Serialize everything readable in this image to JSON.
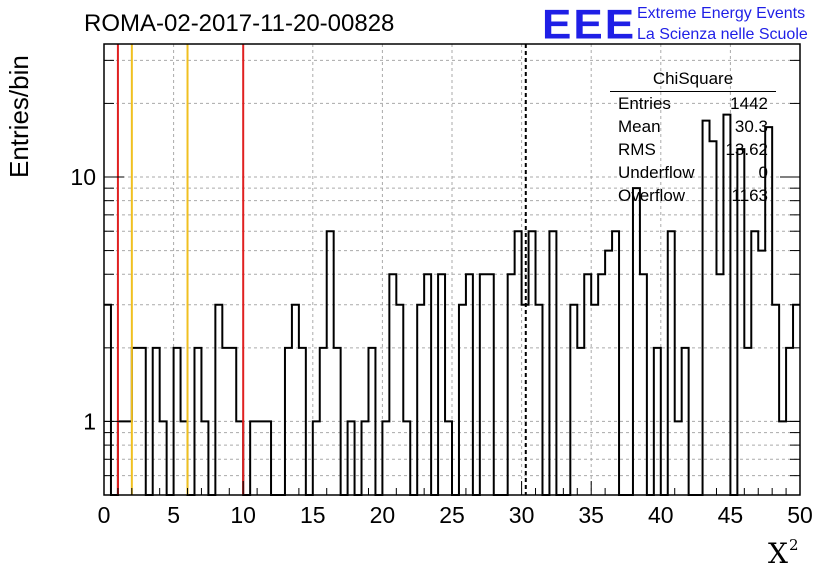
{
  "header": {
    "run_title": "ROMA-02-2017-11-20-00828",
    "logo_letters": "EEE",
    "logo_line1": "Extreme Energy Events",
    "logo_line2": "La Scienza nelle Scuole"
  },
  "stats_box": {
    "title": "ChiSquare",
    "rows": [
      {
        "label": "Entries",
        "value": "1442"
      },
      {
        "label": "Mean",
        "value": "30.3"
      },
      {
        "label": "RMS",
        "value": "13.62"
      },
      {
        "label": "Underflow",
        "value": "0"
      },
      {
        "label": "Overflow",
        "value": "1163"
      }
    ]
  },
  "chart_data": {
    "type": "histogram",
    "title": "ROMA-02-2017-11-20-00828",
    "xlabel": "X",
    "xlabel_superscript": "2",
    "ylabel": "Entries/bin",
    "xlim": [
      0,
      50
    ],
    "ylim": [
      0.5,
      35
    ],
    "yscale": "log",
    "grid": true,
    "x_ticks": [
      0,
      5,
      10,
      15,
      20,
      25,
      30,
      35,
      40,
      45,
      50
    ],
    "y_ticks": [
      1,
      10
    ],
    "bin_width": 0.5,
    "bin_start": 0,
    "counts": [
      3,
      0,
      1,
      1,
      2,
      2,
      0,
      2,
      1,
      0,
      2,
      1,
      0,
      2,
      1,
      0,
      3,
      2,
      2,
      1,
      0,
      1,
      1,
      1,
      0,
      0,
      2,
      3,
      2,
      0,
      1,
      2,
      6,
      2,
      0,
      1,
      0,
      1,
      2,
      0,
      1,
      4,
      3,
      1,
      0,
      3,
      4,
      0,
      4,
      1,
      0,
      3,
      4,
      0,
      4,
      4,
      0,
      0,
      4,
      6,
      3,
      6,
      3,
      0,
      6,
      0,
      0,
      3,
      2,
      4,
      3,
      4,
      5,
      6,
      0,
      0,
      9,
      4,
      0,
      2,
      0,
      6,
      1,
      2,
      0,
      0,
      17,
      14,
      4,
      18,
      0,
      13,
      2,
      6,
      5,
      16,
      3,
      1,
      2,
      3
    ],
    "vertical_lines": [
      {
        "x": 1,
        "color": "#e02020",
        "style": "solid"
      },
      {
        "x": 2,
        "color": "#f0c020",
        "style": "solid"
      },
      {
        "x": 6,
        "color": "#f0c020",
        "style": "solid"
      },
      {
        "x": 10,
        "color": "#e02020",
        "style": "solid"
      },
      {
        "x": 30.3,
        "color": "#000000",
        "style": "dashed"
      }
    ]
  }
}
